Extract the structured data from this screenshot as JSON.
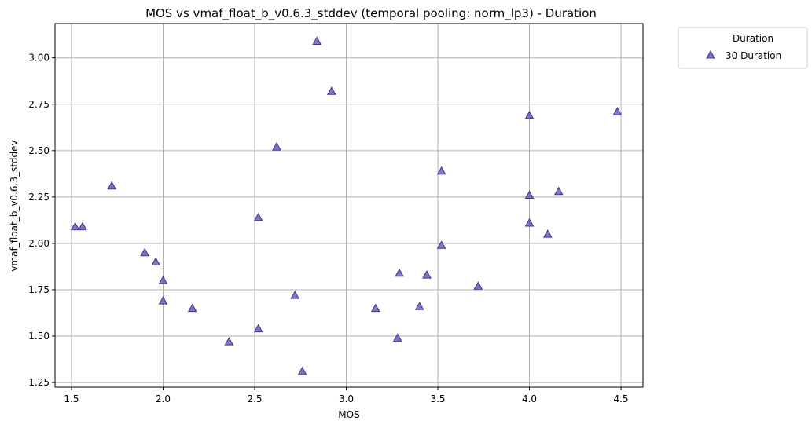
{
  "chart_data": {
    "type": "scatter",
    "title": "MOS vs vmaf_float_b_v0.6.3_stddev (temporal pooling: norm_lp3) - Duration",
    "xlabel": "MOS",
    "ylabel": "vmaf_float_b_v0.6.3_stddev",
    "xlim": [
      1.41,
      4.62
    ],
    "ylim": [
      1.225,
      3.185
    ],
    "xticks": [
      1.5,
      2.0,
      2.5,
      3.0,
      3.5,
      4.0,
      4.5
    ],
    "xtick_labels": [
      "1.5",
      "2.0",
      "2.5",
      "3.0",
      "3.5",
      "4.0",
      "4.5"
    ],
    "yticks": [
      1.25,
      1.5,
      1.75,
      2.0,
      2.25,
      2.5,
      2.75,
      3.0
    ],
    "ytick_labels": [
      "1.25",
      "1.50",
      "1.75",
      "2.00",
      "2.25",
      "2.50",
      "2.75",
      "3.00"
    ],
    "grid": true,
    "legend": {
      "title": "Duration",
      "placement": "outside-top-right"
    },
    "series": [
      {
        "name": "30 Duration",
        "marker": "triangle",
        "color": "#6a5fb8",
        "edge_color": "#3b3390",
        "points": [
          [
            1.52,
            2.09
          ],
          [
            1.56,
            2.09
          ],
          [
            1.72,
            2.31
          ],
          [
            1.9,
            1.95
          ],
          [
            1.96,
            1.9
          ],
          [
            2.0,
            1.8
          ],
          [
            2.0,
            1.69
          ],
          [
            2.16,
            1.65
          ],
          [
            2.36,
            1.47
          ],
          [
            2.52,
            2.14
          ],
          [
            2.52,
            1.54
          ],
          [
            2.62,
            2.52
          ],
          [
            2.72,
            1.72
          ],
          [
            2.76,
            1.31
          ],
          [
            2.84,
            3.09
          ],
          [
            2.92,
            2.82
          ],
          [
            3.16,
            1.65
          ],
          [
            3.28,
            1.49
          ],
          [
            3.29,
            1.84
          ],
          [
            3.4,
            1.66
          ],
          [
            3.44,
            1.83
          ],
          [
            3.52,
            2.39
          ],
          [
            3.52,
            1.99
          ],
          [
            3.72,
            1.77
          ],
          [
            4.0,
            2.69
          ],
          [
            4.0,
            2.26
          ],
          [
            4.0,
            2.11
          ],
          [
            4.1,
            2.05
          ],
          [
            4.16,
            2.28
          ],
          [
            4.48,
            2.71
          ]
        ]
      }
    ]
  }
}
